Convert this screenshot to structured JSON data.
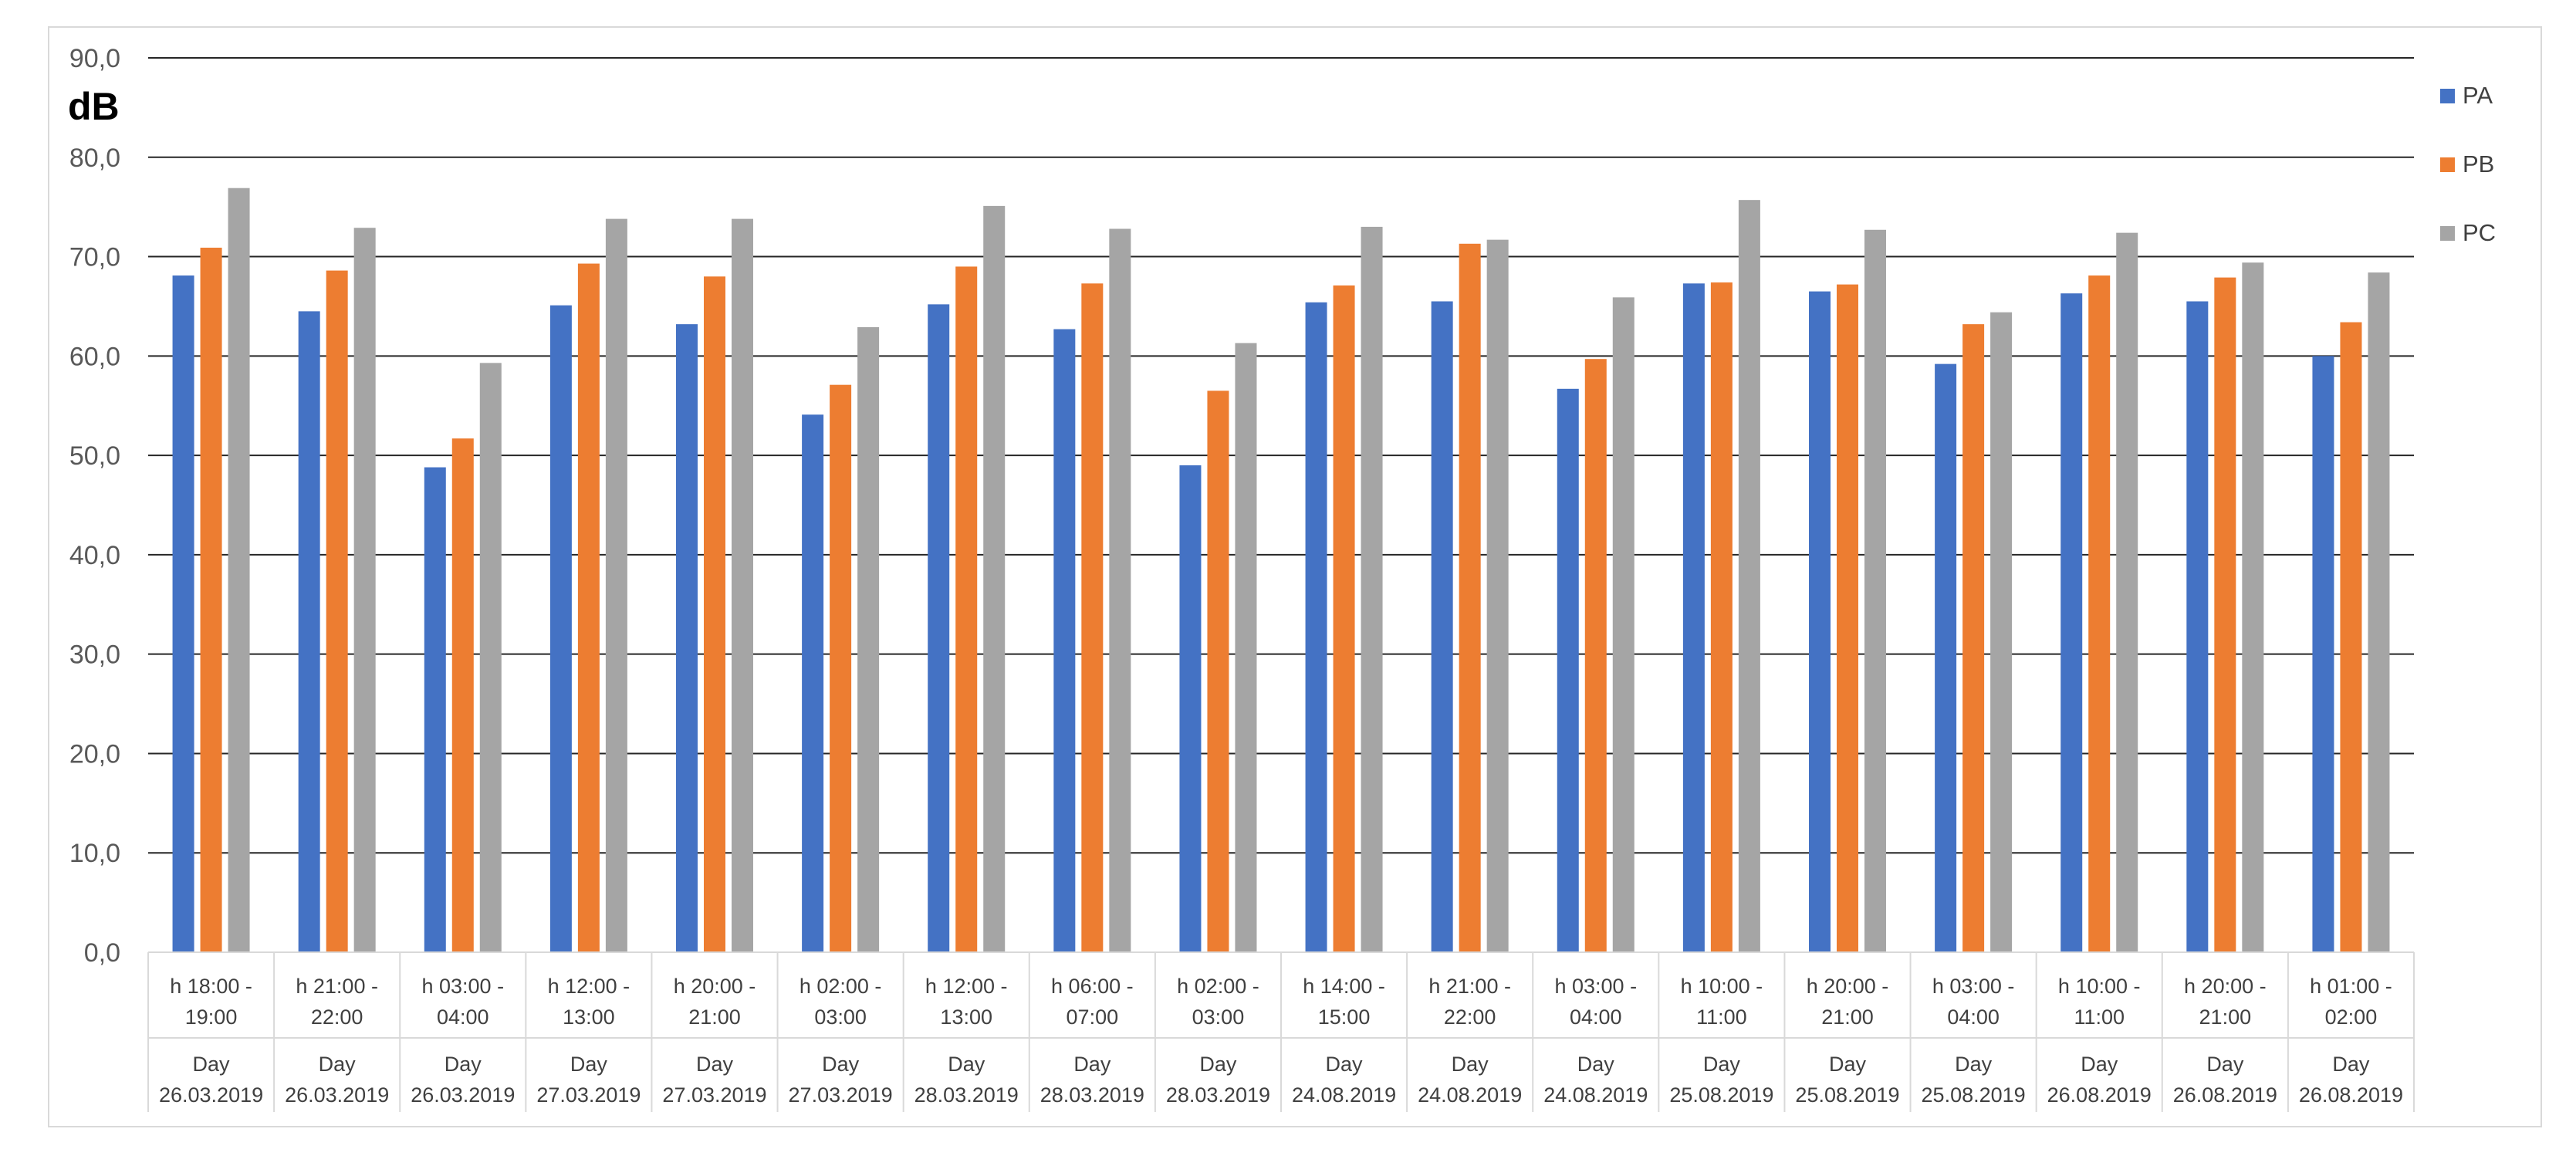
{
  "chart_data": {
    "type": "bar",
    "ylabel": "dB",
    "ylim": [
      0,
      90
    ],
    "yticks": [
      "0,0",
      "10,0",
      "20,0",
      "30,0",
      "40,0",
      "50,0",
      "60,0",
      "70,0",
      "80,0",
      "90,0"
    ],
    "grid": true,
    "legend_position": "right",
    "categories": [
      {
        "hour": [
          "h 18:00 -",
          "19:00"
        ],
        "day": [
          "Day",
          "26.03.2019"
        ]
      },
      {
        "hour": [
          "h 21:00 -",
          "22:00"
        ],
        "day": [
          "Day",
          "26.03.2019"
        ]
      },
      {
        "hour": [
          "h 03:00 -",
          "04:00"
        ],
        "day": [
          "Day",
          "26.03.2019"
        ]
      },
      {
        "hour": [
          "h 12:00 -",
          "13:00"
        ],
        "day": [
          "Day",
          "27.03.2019"
        ]
      },
      {
        "hour": [
          "h 20:00 -",
          "21:00"
        ],
        "day": [
          "Day",
          "27.03.2019"
        ]
      },
      {
        "hour": [
          "h 02:00 -",
          "03:00"
        ],
        "day": [
          "Day",
          "27.03.2019"
        ]
      },
      {
        "hour": [
          "h 12:00 -",
          "13:00"
        ],
        "day": [
          "Day",
          "28.03.2019"
        ]
      },
      {
        "hour": [
          "h 06:00 -",
          "07:00"
        ],
        "day": [
          "Day",
          "28.03.2019"
        ]
      },
      {
        "hour": [
          "h 02:00 -",
          "03:00"
        ],
        "day": [
          "Day",
          "28.03.2019"
        ]
      },
      {
        "hour": [
          "h 14:00 -",
          "15:00"
        ],
        "day": [
          "Day",
          "24.08.2019"
        ]
      },
      {
        "hour": [
          "h 21:00 -",
          "22:00"
        ],
        "day": [
          "Day",
          "24.08.2019"
        ]
      },
      {
        "hour": [
          "h 03:00 -",
          "04:00"
        ],
        "day": [
          "Day",
          "24.08.2019"
        ]
      },
      {
        "hour": [
          "h 10:00 -",
          "11:00"
        ],
        "day": [
          "Day",
          "25.08.2019"
        ]
      },
      {
        "hour": [
          "h 20:00 -",
          "21:00"
        ],
        "day": [
          "Day",
          "25.08.2019"
        ]
      },
      {
        "hour": [
          "h 03:00 -",
          "04:00"
        ],
        "day": [
          "Day",
          "25.08.2019"
        ]
      },
      {
        "hour": [
          "h 10:00 -",
          "11:00"
        ],
        "day": [
          "Day",
          "26.08.2019"
        ]
      },
      {
        "hour": [
          "h 20:00 -",
          "21:00"
        ],
        "day": [
          "Day",
          "26.08.2019"
        ]
      },
      {
        "hour": [
          "h 01:00 -",
          "02:00"
        ],
        "day": [
          "Day",
          "26.08.2019"
        ]
      }
    ],
    "series": [
      {
        "name": "PA",
        "color": "#4472c4",
        "values": [
          68.1,
          64.5,
          48.8,
          65.1,
          63.2,
          54.1,
          65.2,
          62.7,
          49.0,
          65.4,
          65.5,
          56.7,
          67.3,
          66.5,
          59.2,
          66.3,
          65.5,
          60.0
        ]
      },
      {
        "name": "PB",
        "color": "#ed7d31",
        "values": [
          70.9,
          68.6,
          51.7,
          69.3,
          68.0,
          57.1,
          69.0,
          67.3,
          56.5,
          67.1,
          71.3,
          59.7,
          67.4,
          67.2,
          63.2,
          68.1,
          67.9,
          63.4
        ]
      },
      {
        "name": "PC",
        "color": "#a5a5a5",
        "values": [
          76.9,
          72.9,
          59.3,
          73.8,
          73.8,
          62.9,
          75.1,
          72.8,
          61.3,
          73.0,
          71.7,
          65.9,
          75.7,
          72.7,
          64.4,
          72.4,
          69.4,
          68.4
        ]
      }
    ]
  }
}
